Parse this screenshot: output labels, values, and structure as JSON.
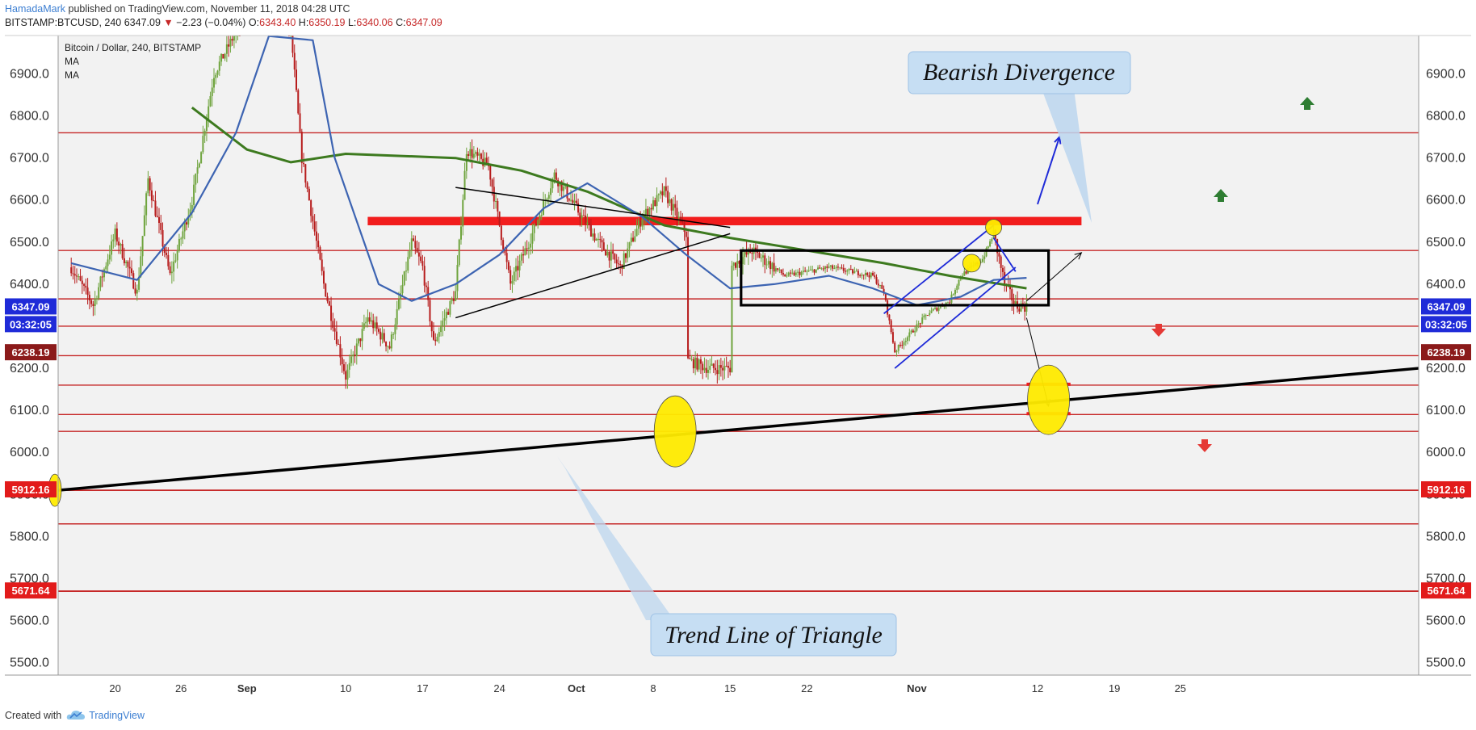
{
  "header": {
    "author": "HamadaMark",
    "published_text": " published on TradingView.com, November 11, 2018 04:28 UTC",
    "symbol": "BITSTAMP:BTCUSD, 240",
    "last": "6347.09",
    "arrow": "▼",
    "change": "−2.23 (−0.04%)",
    "o_label": "O:",
    "o_val": "6343.40",
    "h_label": "H:",
    "h_val": "6350.19",
    "l_label": "L:",
    "l_val": "6340.06",
    "c_label": "C:",
    "c_val": "6347.09"
  },
  "footer": {
    "created_with": "Created with",
    "brand": "TradingView"
  },
  "legend": {
    "title": "Bitcoin / Dollar, 240, BITSTAMP",
    "ma1": "MA",
    "ma2": "MA"
  },
  "annotations": {
    "bearish": "Bearish Divergence",
    "trendline": "Trend Line of Triangle"
  },
  "badges": {
    "price": "6347.09",
    "countdown": "03:32:05",
    "level1": "6238.19",
    "level2": "5912.16",
    "level3": "5671.64"
  },
  "colors": {
    "background": "#f2f2f2",
    "up_candle": "#6fa43e",
    "down_candle": "#b71c1c",
    "ma_fast": "#3d64b2",
    "ma_slow": "#3d7a1f",
    "hline": "#c62828",
    "highlight": "#ffeb00",
    "badge_blue": "#1f2bd8",
    "badge_red": "#e21b1b"
  },
  "chart_data": {
    "type": "candlestick",
    "title": "Bitcoin / Dollar, 240, BITSTAMP",
    "ylim": [
      5450,
      7000
    ],
    "y_ticks": [
      "6900.0",
      "6800.0",
      "6700.0",
      "6600.0",
      "6500.0",
      "6400.0",
      "6300.0",
      "6200.0",
      "6100.0",
      "6000.0",
      "5900.0",
      "5800.0",
      "5700.0",
      "5600.0",
      "5500.0"
    ],
    "x_ticks": [
      "20",
      "26",
      "Sep",
      "10",
      "17",
      "24",
      "Oct",
      "8",
      "15",
      "22",
      "Nov",
      "12",
      "19",
      "25"
    ],
    "x_tick_dates": [
      "2018-08-20",
      "2018-08-26",
      "2018-09-01",
      "2018-09-10",
      "2018-09-17",
      "2018-09-24",
      "2018-10-01",
      "2018-10-08",
      "2018-10-15",
      "2018-10-22",
      "2018-11-01",
      "2018-11-12",
      "2018-11-19",
      "2018-11-25"
    ],
    "price_path": [
      [
        "2018-08-16",
        6440
      ],
      [
        "2018-08-18",
        6350
      ],
      [
        "2018-08-20",
        6520
      ],
      [
        "2018-08-22",
        6380
      ],
      [
        "2018-08-23",
        6650
      ],
      [
        "2018-08-25",
        6420
      ],
      [
        "2018-08-27",
        6600
      ],
      [
        "2018-08-29",
        6900
      ],
      [
        "2018-08-31",
        7000
      ],
      [
        "2018-09-01",
        7050
      ],
      [
        "2018-09-03",
        7100
      ],
      [
        "2018-09-05",
        7000
      ],
      [
        "2018-09-06",
        6700
      ],
      [
        "2018-09-08",
        6400
      ],
      [
        "2018-09-10",
        6180
      ],
      [
        "2018-09-12",
        6320
      ],
      [
        "2018-09-14",
        6250
      ],
      [
        "2018-09-16",
        6500
      ],
      [
        "2018-09-17",
        6440
      ],
      [
        "2018-09-18",
        6260
      ],
      [
        "2018-09-20",
        6380
      ],
      [
        "2018-09-21",
        6720
      ],
      [
        "2018-09-23",
        6680
      ],
      [
        "2018-09-24",
        6540
      ],
      [
        "2018-09-25",
        6400
      ],
      [
        "2018-09-27",
        6520
      ],
      [
        "2018-09-29",
        6660
      ],
      [
        "2018-10-01",
        6580
      ],
      [
        "2018-10-03",
        6500
      ],
      [
        "2018-10-05",
        6440
      ],
      [
        "2018-10-07",
        6560
      ],
      [
        "2018-10-09",
        6620
      ],
      [
        "2018-10-11",
        6520
      ],
      [
        "2018-10-11",
        6220
      ],
      [
        "2018-10-13",
        6200
      ],
      [
        "2018-10-15",
        6200
      ],
      [
        "2018-10-15",
        6440
      ],
      [
        "2018-10-17",
        6480
      ],
      [
        "2018-10-20",
        6420
      ],
      [
        "2018-10-24",
        6440
      ],
      [
        "2018-10-28",
        6420
      ],
      [
        "2018-10-29",
        6380
      ],
      [
        "2018-10-30",
        6240
      ],
      [
        "2018-10-31",
        6270
      ],
      [
        "2018-11-02",
        6330
      ],
      [
        "2018-11-04",
        6360
      ],
      [
        "2018-11-05",
        6420
      ],
      [
        "2018-11-07",
        6460
      ],
      [
        "2018-11-08",
        6520
      ],
      [
        "2018-11-09",
        6400
      ],
      [
        "2018-11-10",
        6350
      ],
      [
        "2018-11-11",
        6347
      ]
    ],
    "ma_fast": [
      [
        "2018-08-16",
        6450
      ],
      [
        "2018-08-22",
        6410
      ],
      [
        "2018-08-27",
        6570
      ],
      [
        "2018-08-31",
        6760
      ],
      [
        "2018-09-03",
        6990
      ],
      [
        "2018-09-07",
        6980
      ],
      [
        "2018-09-09",
        6700
      ],
      [
        "2018-09-13",
        6400
      ],
      [
        "2018-09-16",
        6360
      ],
      [
        "2018-09-20",
        6400
      ],
      [
        "2018-09-24",
        6470
      ],
      [
        "2018-09-28",
        6580
      ],
      [
        "2018-10-02",
        6640
      ],
      [
        "2018-10-07",
        6560
      ],
      [
        "2018-10-11",
        6470
      ],
      [
        "2018-10-15",
        6390
      ],
      [
        "2018-10-19",
        6400
      ],
      [
        "2018-10-24",
        6420
      ],
      [
        "2018-10-28",
        6390
      ],
      [
        "2018-11-01",
        6350
      ],
      [
        "2018-11-05",
        6370
      ],
      [
        "2018-11-08",
        6410
      ],
      [
        "2018-11-11",
        6415
      ]
    ],
    "ma_slow": [
      [
        "2018-08-27",
        6820
      ],
      [
        "2018-09-01",
        6720
      ],
      [
        "2018-09-05",
        6690
      ],
      [
        "2018-09-10",
        6710
      ],
      [
        "2018-09-20",
        6700
      ],
      [
        "2018-09-26",
        6670
      ],
      [
        "2018-10-02",
        6620
      ],
      [
        "2018-10-09",
        6540
      ],
      [
        "2018-10-15",
        6510
      ],
      [
        "2018-10-22",
        6480
      ],
      [
        "2018-10-29",
        6450
      ],
      [
        "2018-11-04",
        6420
      ],
      [
        "2018-11-11",
        6390
      ]
    ],
    "horizontal_levels": [
      6760,
      6480,
      6365,
      6300,
      6230,
      6160,
      6090,
      6050,
      5910,
      5830,
      5670
    ],
    "resistance_zone": [
      6560,
      6540
    ],
    "triangle_upper": [
      [
        "2018-09-20",
        6630
      ],
      [
        "2018-10-15",
        6535
      ]
    ],
    "triangle_lower": [
      [
        "2018-09-20",
        6320
      ],
      [
        "2018-10-15",
        6520
      ]
    ],
    "long_trendline": [
      [
        "2018-08-10",
        5900
      ],
      [
        "2018-12-01",
        6200
      ]
    ],
    "range_box": {
      "from": "2018-10-16",
      "to": "2018-11-13",
      "top": 6480,
      "bottom": 6350
    },
    "channel": [
      [
        [
          "2018-10-29",
          6330
        ],
        [
          "2018-11-08",
          6540
        ]
      ],
      [
        [
          "2018-10-30",
          6200
        ],
        [
          "2018-11-10",
          6440
        ]
      ]
    ],
    "scenario_arrows": [
      [
        [
          "2018-11-11",
          6360
        ],
        [
          "2018-11-16",
          6475
        ]
      ],
      [
        [
          "2018-11-11",
          6320
        ],
        [
          "2018-11-13",
          6110
        ]
      ],
      [
        [
          "2018-11-12",
          6590
        ],
        [
          "2018-11-14",
          6750
        ]
      ]
    ],
    "price_badges": [
      6347.09,
      6238.19,
      5912.16,
      5671.64
    ],
    "grid": false
  }
}
